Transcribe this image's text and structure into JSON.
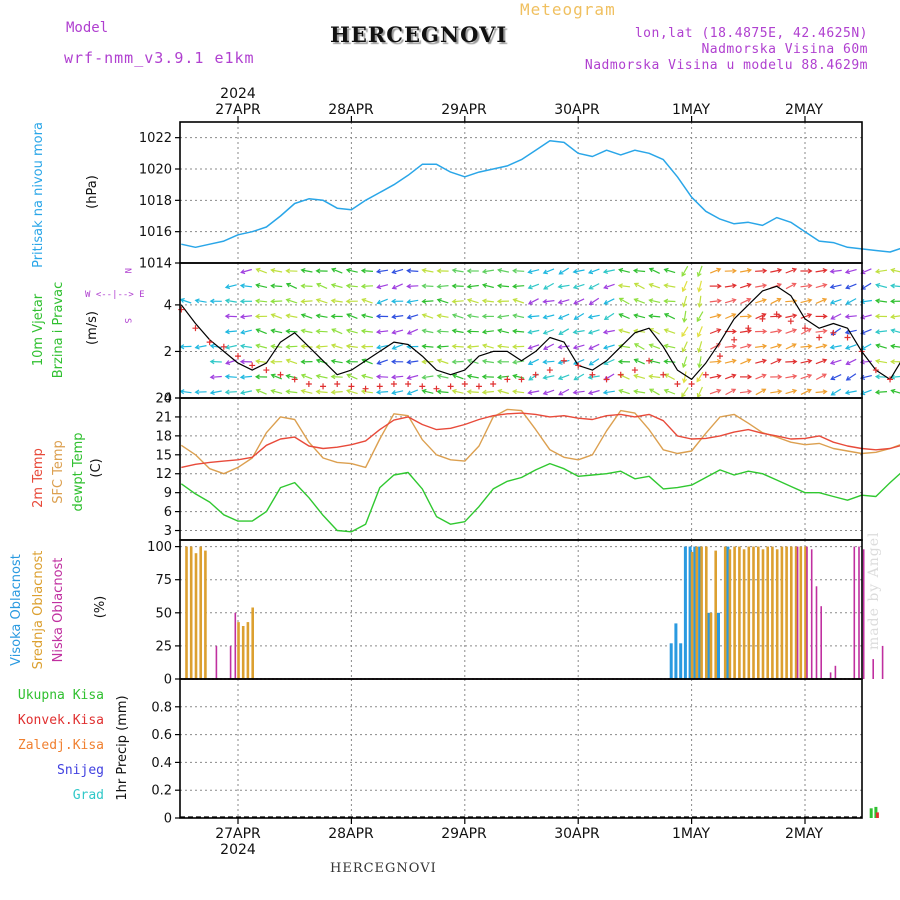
{
  "header": {
    "model_label": "Model",
    "model_name": "wrf-nmm_v3.9.1  e1km",
    "station": "HERCEGNOVI",
    "product": "Meteogram",
    "coords": "lon,lat (18.4875E, 42.4625N)",
    "elevation": "Nadmorska Visina 60m",
    "model_elevation": "Nadmorska Visina u modelu 88.4629m"
  },
  "footer": {
    "station": "HERCEGNOVI",
    "credit": "made by Angel"
  },
  "time_axis": {
    "year": "2024",
    "dates": [
      "27APR",
      "28APR",
      "29APR",
      "30APR",
      "1MAY",
      "2MAY"
    ]
  },
  "panel_labels": {
    "pressure": {
      "title": "Pritisak na nivou mora",
      "unit": "(hPa)"
    },
    "wind": {
      "title1": "10m Vjetar",
      "title2": "Brzina i Pravac",
      "unit": "(m/s)",
      "compass": [
        "N",
        "W <--|--> E",
        "S"
      ]
    },
    "temp": {
      "t2m": "2m Temp",
      "sfc": "SFC Temp",
      "dewpt": "dewpt Temp",
      "unit": "(C)"
    },
    "cloud": {
      "high": "Visoka Oblacnost",
      "mid": "Srednja Oblacnost",
      "low": "Niska Oblacnost",
      "unit": "(%)"
    },
    "precip": {
      "unit": "1hr Precip (mm)",
      "legend": [
        "Ukupna Kisa",
        "Konvek.Kisa",
        "Zaledj.Kisa",
        "Snijeg",
        "Grad"
      ]
    }
  },
  "colors": {
    "pressure": "#2aa6e8",
    "t2m": "#e84a3a",
    "sfc": "#dca050",
    "dewpt": "#30c830",
    "cloud_high": "#2a9ae0",
    "cloud_mid": "#dca030",
    "cloud_low": "#c030a0",
    "precip_total": "#30c030",
    "precip_conv": "#e03030",
    "precip_frz": "#f08030",
    "precip_snow": "#4040e0",
    "precip_hail": "#30c8c8",
    "gust": "#000000",
    "wind_marker": "#e03030"
  },
  "chart_data": [
    {
      "type": "line",
      "name": "pressure",
      "ylabel": "Pritisak na nivou mora (hPa)",
      "ylim": [
        1014,
        1023
      ],
      "yticks": [
        1014,
        1016,
        1018,
        1020,
        1022
      ],
      "x_unit": "hours from 27APR 00",
      "x": [
        -12,
        -9,
        -6,
        -3,
        0,
        3,
        6,
        9,
        12,
        15,
        18,
        21,
        24,
        27,
        30,
        33,
        36,
        39,
        42,
        45,
        48,
        51,
        54,
        57,
        60,
        63,
        66,
        69,
        72,
        75,
        78,
        81,
        84,
        87,
        90,
        93,
        96,
        99,
        102,
        105,
        108,
        111,
        114,
        117,
        120,
        123,
        126,
        129,
        132,
        135,
        138,
        141,
        144,
        147,
        150
      ],
      "values": [
        1015.2,
        1015.0,
        1015.2,
        1015.4,
        1015.8,
        1016.0,
        1016.3,
        1017.0,
        1017.8,
        1018.1,
        1018.0,
        1017.5,
        1017.4,
        1018.0,
        1018.5,
        1019.0,
        1019.6,
        1020.3,
        1020.3,
        1019.8,
        1019.5,
        1019.8,
        1020.0,
        1020.2,
        1020.6,
        1021.2,
        1021.8,
        1021.7,
        1021.0,
        1020.8,
        1021.2,
        1020.9,
        1021.2,
        1021.0,
        1020.6,
        1019.5,
        1018.2,
        1017.3,
        1016.8,
        1016.5,
        1016.6,
        1016.4,
        1016.9,
        1016.6,
        1016.0,
        1015.4,
        1015.3,
        1015.0,
        1014.9,
        1014.8,
        1014.7,
        1015.0,
        1015.5,
        1015.4,
        1015.3
      ]
    },
    {
      "type": "line",
      "name": "wind",
      "ylabel": "10m Vjetar Brzina i Pravac (m/s)",
      "ylim": [
        0,
        5.8
      ],
      "yticks": [
        0,
        2,
        4
      ],
      "x_unit": "hours from 27APR 00",
      "x": [
        -12,
        -9,
        -6,
        -3,
        0,
        3,
        6,
        9,
        12,
        15,
        18,
        21,
        24,
        27,
        30,
        33,
        36,
        39,
        42,
        45,
        48,
        51,
        54,
        57,
        60,
        63,
        66,
        69,
        72,
        75,
        78,
        81,
        84,
        87,
        90,
        93,
        96,
        99,
        102,
        105,
        108,
        111,
        114,
        117,
        120,
        123,
        126,
        129,
        132,
        135,
        138,
        141,
        144,
        147,
        150
      ],
      "series": [
        {
          "name": "gust",
          "values": [
            4.0,
            3.2,
            2.5,
            2.0,
            1.5,
            1.2,
            1.5,
            2.4,
            2.8,
            2.2,
            1.6,
            1.0,
            1.2,
            1.6,
            2.0,
            2.4,
            2.3,
            1.8,
            1.2,
            1.0,
            1.2,
            1.8,
            2.0,
            2.0,
            1.6,
            2.0,
            2.6,
            2.4,
            1.4,
            1.2,
            1.6,
            2.2,
            2.8,
            3.0,
            2.2,
            1.2,
            0.8,
            1.5,
            2.4,
            3.4,
            4.0,
            4.6,
            4.8,
            4.4,
            3.4,
            3.0,
            3.2,
            3.0,
            2.0,
            1.2,
            0.8,
            1.8,
            2.4,
            2.2,
            2.0
          ]
        },
        {
          "name": "speed",
          "values": [
            3.8,
            3.0,
            2.4,
            2.2,
            1.8,
            1.4,
            1.2,
            1.0,
            0.8,
            0.6,
            0.5,
            0.6,
            0.5,
            0.4,
            0.5,
            0.6,
            0.6,
            0.5,
            0.4,
            0.5,
            0.6,
            0.5,
            0.6,
            0.8,
            0.8,
            1.0,
            1.2,
            1.6,
            1.4,
            1.0,
            0.8,
            1.0,
            1.2,
            1.6,
            1.0,
            0.6,
            0.6,
            1.0,
            1.8,
            2.5,
            3.0,
            3.4,
            3.6,
            3.3,
            3.0,
            2.6,
            2.8,
            2.6,
            2.0,
            1.2,
            0.8,
            1.0,
            1.6,
            1.8,
            1.8
          ]
        }
      ]
    },
    {
      "type": "line",
      "name": "temperature",
      "ylabel": "(C)",
      "ylim": [
        1.5,
        24
      ],
      "yticks": [
        3,
        6,
        9,
        12,
        15,
        18,
        21,
        24
      ],
      "x_unit": "hours from 27APR 00",
      "x": [
        -12,
        -9,
        -6,
        -3,
        0,
        3,
        6,
        9,
        12,
        15,
        18,
        21,
        24,
        27,
        30,
        33,
        36,
        39,
        42,
        45,
        48,
        51,
        54,
        57,
        60,
        63,
        66,
        69,
        72,
        75,
        78,
        81,
        84,
        87,
        90,
        93,
        96,
        99,
        102,
        105,
        108,
        111,
        114,
        117,
        120,
        123,
        126,
        129,
        132,
        135,
        138,
        141,
        144,
        147,
        150
      ],
      "series": [
        {
          "name": "2m Temp",
          "values": [
            13.0,
            13.5,
            13.8,
            14.0,
            14.2,
            14.6,
            16.5,
            17.5,
            17.8,
            16.4,
            16.0,
            16.2,
            16.6,
            17.2,
            19.0,
            20.5,
            21.0,
            19.8,
            19.0,
            19.2,
            19.8,
            20.6,
            21.2,
            21.5,
            21.6,
            21.4,
            21.0,
            21.2,
            20.8,
            20.6,
            21.2,
            21.4,
            21.0,
            21.4,
            20.4,
            18.0,
            17.5,
            17.6,
            18.0,
            18.6,
            19.0,
            18.4,
            18.0,
            17.5,
            17.6,
            18.0,
            17.0,
            16.4,
            16.0,
            15.8,
            16.0,
            16.6,
            17.0,
            17.2,
            17.6
          ]
        },
        {
          "name": "SFC Temp",
          "values": [
            16.5,
            15.0,
            12.8,
            12.0,
            13.0,
            14.5,
            18.5,
            21.0,
            20.6,
            17.0,
            14.5,
            13.8,
            13.6,
            13.0,
            17.5,
            21.5,
            21.2,
            17.4,
            15.0,
            14.2,
            14.0,
            16.4,
            21.0,
            22.2,
            22.0,
            19.0,
            15.8,
            14.6,
            14.2,
            15.0,
            18.8,
            22.0,
            21.6,
            19.0,
            15.8,
            15.2,
            15.6,
            18.4,
            21.0,
            21.4,
            20.0,
            18.5,
            17.8,
            17.0,
            16.6,
            16.8,
            16.0,
            15.6,
            15.2,
            15.4,
            16.0,
            16.8,
            20.0,
            21.0,
            21.8
          ]
        },
        {
          "name": "dewpt Temp",
          "values": [
            10.4,
            8.8,
            7.5,
            5.5,
            4.5,
            4.5,
            6.0,
            9.8,
            10.6,
            8.2,
            5.4,
            3.0,
            2.8,
            4.0,
            9.8,
            11.8,
            12.2,
            9.6,
            5.2,
            4.0,
            4.4,
            6.8,
            9.6,
            10.8,
            11.4,
            12.6,
            13.6,
            12.8,
            11.6,
            11.8,
            12.0,
            12.4,
            11.2,
            11.6,
            9.6,
            9.8,
            10.2,
            11.4,
            12.6,
            11.8,
            12.4,
            12.0,
            11.0,
            10.0,
            9.0,
            9.0,
            8.4,
            7.8,
            8.6,
            8.4,
            10.6,
            12.6,
            13.8,
            14.6,
            15.8
          ]
        }
      ]
    },
    {
      "type": "bar",
      "name": "cloud_cover",
      "ylabel": "(%)",
      "ylim": [
        0,
        105
      ],
      "yticks": [
        0,
        25,
        50,
        75,
        100
      ],
      "x_unit": "hours from 27APR 00",
      "series": [
        {
          "name": "Visoka Oblacnost",
          "x": [
            92,
            93,
            94,
            95,
            96,
            97,
            98,
            100,
            102,
            104
          ],
          "values": [
            27,
            42,
            27,
            100,
            100,
            100,
            100,
            50,
            50,
            100
          ]
        },
        {
          "name": "Srednja Oblacnost",
          "x": [
            -11,
            -10,
            -9,
            -8,
            -7,
            0,
            1,
            2,
            3,
            96,
            97,
            98,
            99,
            100,
            101,
            103,
            104,
            105,
            106,
            107,
            108,
            109,
            110,
            111,
            112,
            113,
            114,
            115,
            116,
            117,
            118,
            119,
            120
          ],
          "values": [
            100,
            100,
            95,
            100,
            97,
            43,
            40,
            43,
            54,
            96,
            100,
            100,
            100,
            50,
            97,
            100,
            98,
            100,
            100,
            98,
            100,
            100,
            100,
            98,
            100,
            100,
            98,
            100,
            100,
            100,
            100,
            100,
            100
          ]
        },
        {
          "name": "Niska Oblacnost",
          "x": [
            -5,
            -2,
            -1,
            118,
            120,
            121,
            122,
            123,
            125,
            126,
            130,
            131,
            132,
            134,
            136
          ],
          "values": [
            25,
            25,
            50,
            100,
            100,
            98,
            70,
            55,
            5,
            10,
            100,
            100,
            98,
            15,
            25
          ]
        }
      ]
    },
    {
      "type": "bar",
      "name": "precipitation",
      "ylabel": "1hr Precip (mm)",
      "ylim": [
        0,
        1.0
      ],
      "yticks": [
        0,
        0.2,
        0.4,
        0.6,
        0.8
      ],
      "x_unit": "hours from 27APR 00",
      "series": [
        {
          "name": "Ukupna Kisa",
          "x": [
            134,
            135
          ],
          "values": [
            0.07,
            0.08
          ]
        },
        {
          "name": "Konvek.Kisa",
          "x": [
            135
          ],
          "values": [
            0.04
          ]
        }
      ]
    }
  ]
}
